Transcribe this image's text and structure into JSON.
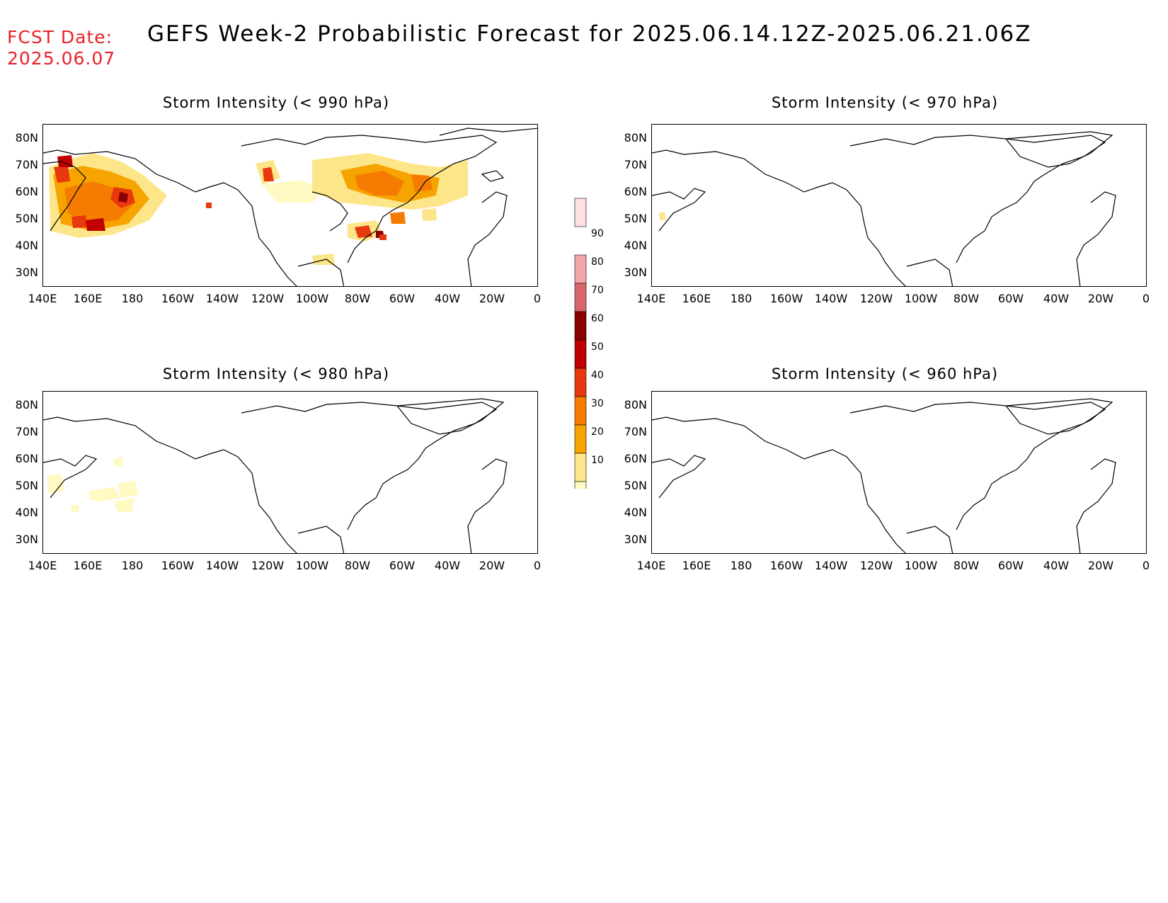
{
  "header": {
    "fcst_label": "FCST Date:",
    "fcst_date": "2025.06.07",
    "title": "GEFS Week-2 Probabilistic Forecast for 2025.06.14.12Z-2025.06.21.06Z"
  },
  "panels": [
    {
      "id": "p990",
      "title": "Storm Intensity (< 990 hPa)"
    },
    {
      "id": "p970",
      "title": "Storm Intensity (< 970 hPa)"
    },
    {
      "id": "p980",
      "title": "Storm Intensity (< 980 hPa)"
    },
    {
      "id": "p960",
      "title": "Storm Intensity (< 960 hPa)"
    }
  ],
  "axes": {
    "lat_labels": [
      "80N",
      "70N",
      "60N",
      "50N",
      "40N",
      "30N"
    ],
    "lon_labels": [
      "140E",
      "160E",
      "180",
      "160W",
      "140W",
      "120W",
      "100W",
      "80W",
      "60W",
      "40W",
      "20W",
      "0"
    ]
  },
  "colorbar": {
    "levels": [
      "10",
      "20",
      "30",
      "40",
      "50",
      "60",
      "70",
      "80",
      "90"
    ],
    "colors": [
      "#fff9c4",
      "#fde68a",
      "#f7a400",
      "#f57c00",
      "#e8380d",
      "#c00000",
      "#8b0000",
      "#d9666a",
      "#f0a6aa",
      "#fde0e2"
    ]
  }
}
